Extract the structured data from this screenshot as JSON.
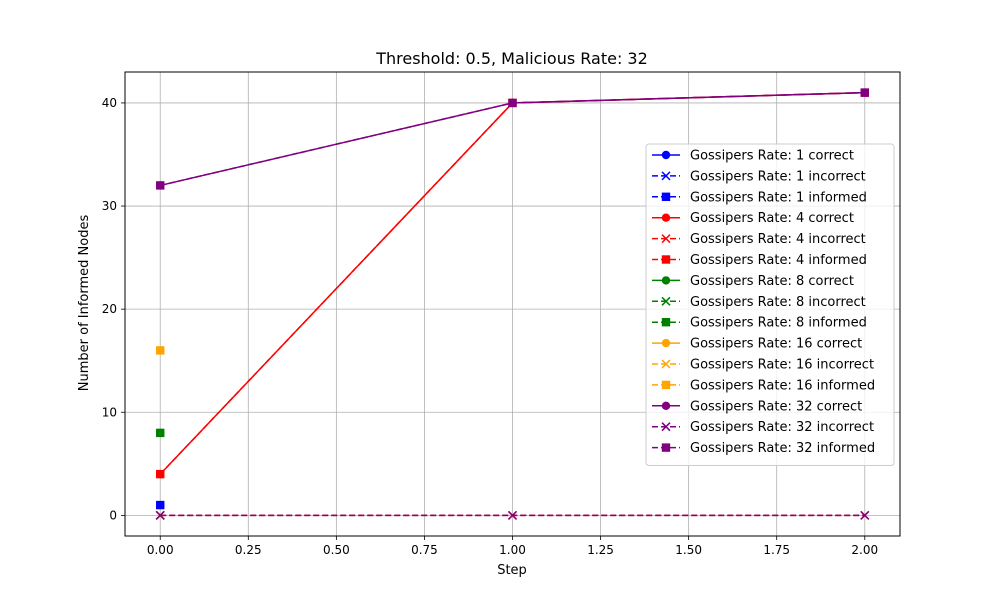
{
  "chart_data": {
    "type": "line",
    "title": "Threshold: 0.5, Malicious Rate: 32",
    "xlabel": "Step",
    "ylabel": "Number of Informed Nodes",
    "xlim": [
      -0.1,
      2.1
    ],
    "ylim": [
      -2,
      43
    ],
    "xticks": [
      0.0,
      0.25,
      0.5,
      0.75,
      1.0,
      1.25,
      1.5,
      1.75,
      2.0
    ],
    "xtick_labels": [
      "0.00",
      "0.25",
      "0.50",
      "0.75",
      "1.00",
      "1.25",
      "1.50",
      "1.75",
      "2.00"
    ],
    "yticks": [
      0,
      10,
      20,
      30,
      40
    ],
    "ytick_labels": [
      "0",
      "10",
      "20",
      "30",
      "40"
    ],
    "grid": true,
    "legend_position": "right",
    "series": [
      {
        "name": "Gossipers Rate: 1 correct",
        "color": "#0000ff",
        "marker": "circle",
        "dash": false,
        "x": [
          0
        ],
        "y": [
          1
        ]
      },
      {
        "name": "Gossipers Rate: 1 incorrect",
        "color": "#0000ff",
        "marker": "x",
        "dash": true,
        "x": [
          0
        ],
        "y": [
          0
        ]
      },
      {
        "name": "Gossipers Rate: 1 informed",
        "color": "#0000ff",
        "marker": "square",
        "dash": true,
        "x": [
          0
        ],
        "y": [
          1
        ]
      },
      {
        "name": "Gossipers Rate: 4 correct",
        "color": "#ff0000",
        "marker": "circle",
        "dash": false,
        "x": [
          0,
          1,
          2
        ],
        "y": [
          4,
          40,
          41
        ]
      },
      {
        "name": "Gossipers Rate: 4 incorrect",
        "color": "#ff0000",
        "marker": "x",
        "dash": true,
        "x": [
          0,
          1,
          2
        ],
        "y": [
          0,
          0,
          0
        ]
      },
      {
        "name": "Gossipers Rate: 4 informed",
        "color": "#ff0000",
        "marker": "square",
        "dash": true,
        "x": [
          0,
          1,
          2
        ],
        "y": [
          4,
          40,
          41
        ]
      },
      {
        "name": "Gossipers Rate: 8 correct",
        "color": "#008000",
        "marker": "circle",
        "dash": false,
        "x": [
          0
        ],
        "y": [
          8
        ]
      },
      {
        "name": "Gossipers Rate: 8 incorrect",
        "color": "#008000",
        "marker": "x",
        "dash": true,
        "x": [
          0
        ],
        "y": [
          0
        ]
      },
      {
        "name": "Gossipers Rate: 8 informed",
        "color": "#008000",
        "marker": "square",
        "dash": true,
        "x": [
          0
        ],
        "y": [
          8
        ]
      },
      {
        "name": "Gossipers Rate: 16 correct",
        "color": "#ffa500",
        "marker": "circle",
        "dash": false,
        "x": [
          0
        ],
        "y": [
          16
        ]
      },
      {
        "name": "Gossipers Rate: 16 incorrect",
        "color": "#ffa500",
        "marker": "x",
        "dash": true,
        "x": [
          0
        ],
        "y": [
          0
        ]
      },
      {
        "name": "Gossipers Rate: 16 informed",
        "color": "#ffa500",
        "marker": "square",
        "dash": true,
        "x": [
          0
        ],
        "y": [
          16
        ]
      },
      {
        "name": "Gossipers Rate: 32 correct",
        "color": "#800080",
        "marker": "circle",
        "dash": false,
        "x": [
          0,
          1,
          2
        ],
        "y": [
          32,
          40,
          41
        ]
      },
      {
        "name": "Gossipers Rate: 32 incorrect",
        "color": "#800080",
        "marker": "x",
        "dash": true,
        "x": [
          0,
          1,
          2
        ],
        "y": [
          0,
          0,
          0
        ]
      },
      {
        "name": "Gossipers Rate: 32 informed",
        "color": "#800080",
        "marker": "square",
        "dash": true,
        "x": [
          0,
          1,
          2
        ],
        "y": [
          32,
          40,
          41
        ]
      }
    ]
  }
}
